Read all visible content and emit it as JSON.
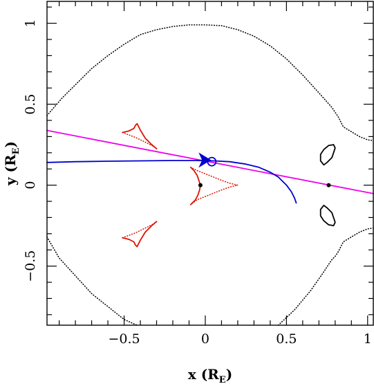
{
  "chart_data": {
    "type": "line",
    "xlabel": {
      "main": "x (R",
      "sub": "E",
      "close": ")"
    },
    "ylabel": {
      "main": "y (R",
      "sub": "E",
      "close": ")"
    },
    "xlim": [
      -0.975,
      1.035
    ],
    "ylim": [
      -0.865,
      1.135
    ],
    "xticks": [
      {
        "value": -0.5,
        "label": "−0.5"
      },
      {
        "value": 0,
        "label": "0"
      },
      {
        "value": 0.5,
        "label": "0.5"
      },
      {
        "value": 1,
        "label": "1"
      }
    ],
    "yticks": [
      {
        "value": -0.5,
        "label": "−0.5"
      },
      {
        "value": 0,
        "label": "0"
      },
      {
        "value": 0.5,
        "label": "0.5"
      },
      {
        "value": 1,
        "label": "1"
      }
    ],
    "x_minor_step": 0.1,
    "y_minor_step": 0.1,
    "series": [
      {
        "style": "dotted",
        "color": "#000000",
        "x": [
          -0.975,
          -0.88,
          -0.8,
          -0.7,
          -0.6,
          -0.5,
          -0.4,
          -0.3,
          -0.2,
          -0.1,
          0.0,
          0.1,
          0.2,
          0.3,
          0.4,
          0.5,
          0.6,
          0.7,
          0.78,
          0.8,
          0.82,
          0.85,
          0.9,
          0.95,
          1.0,
          1.035
        ],
        "y": [
          0.43,
          0.54,
          0.62,
          0.72,
          0.8,
          0.87,
          0.93,
          0.96,
          0.98,
          0.99,
          0.99,
          0.985,
          0.96,
          0.92,
          0.86,
          0.78,
          0.68,
          0.57,
          0.48,
          0.45,
          0.42,
          0.36,
          0.33,
          0.3,
          0.28,
          0.275
        ]
      },
      {
        "style": "dotted",
        "color": "#000000",
        "x": [
          -0.975,
          -0.9,
          -0.8,
          -0.7,
          -0.6,
          -0.5,
          -0.42
        ],
        "y": [
          -0.32,
          -0.45,
          -0.56,
          -0.67,
          -0.75,
          -0.83,
          -0.865
        ]
      },
      {
        "style": "dotted",
        "color": "#000000",
        "x": [
          0.45,
          0.55,
          0.65,
          0.72,
          0.78,
          0.8,
          0.82,
          0.85,
          0.9,
          0.95,
          1.0,
          1.035
        ],
        "y": [
          -0.865,
          -0.77,
          -0.65,
          -0.55,
          -0.46,
          -0.44,
          -0.41,
          -0.35,
          -0.32,
          -0.29,
          -0.27,
          -0.265
        ]
      },
      {
        "style": "solid",
        "color": "#000000",
        "x": [
          0.79,
          0.76,
          0.73,
          0.71,
          0.71,
          0.73,
          0.75,
          0.78,
          0.79,
          0.8,
          0.79
        ],
        "y": [
          0.25,
          0.245,
          0.22,
          0.19,
          0.15,
          0.125,
          0.14,
          0.17,
          0.2,
          0.23,
          0.25
        ]
      },
      {
        "style": "solid",
        "color": "#000000",
        "x": [
          0.79,
          0.76,
          0.73,
          0.71,
          0.71,
          0.73,
          0.75,
          0.78,
          0.79,
          0.8,
          0.79
        ],
        "y": [
          -0.25,
          -0.245,
          -0.22,
          -0.19,
          -0.15,
          -0.125,
          -0.14,
          -0.17,
          -0.2,
          -0.23,
          -0.25
        ]
      },
      {
        "style": "solid",
        "color": "#dd1100",
        "x": [
          -0.51,
          -0.47,
          -0.44,
          -0.43,
          -0.42,
          -0.4,
          -0.37,
          -0.33,
          -0.3
        ],
        "y": [
          0.325,
          0.335,
          0.35,
          0.37,
          0.38,
          0.34,
          0.29,
          0.25,
          0.225
        ]
      },
      {
        "style": "dotted",
        "color": "#dd1100",
        "x": [
          -0.51,
          -0.47,
          -0.43,
          -0.39,
          -0.35,
          -0.32,
          -0.3
        ],
        "y": [
          0.325,
          0.31,
          0.295,
          0.275,
          0.255,
          0.24,
          0.225
        ]
      },
      {
        "style": "solid",
        "color": "#dd1100",
        "x": [
          -0.51,
          -0.47,
          -0.44,
          -0.43,
          -0.42,
          -0.4,
          -0.37,
          -0.33,
          -0.3
        ],
        "y": [
          -0.325,
          -0.335,
          -0.35,
          -0.37,
          -0.38,
          -0.34,
          -0.29,
          -0.25,
          -0.225
        ]
      },
      {
        "style": "dotted",
        "color": "#dd1100",
        "x": [
          -0.51,
          -0.47,
          -0.43,
          -0.39,
          -0.35,
          -0.32,
          -0.3
        ],
        "y": [
          -0.325,
          -0.31,
          -0.295,
          -0.275,
          -0.255,
          -0.24,
          -0.225
        ]
      },
      {
        "style": "solid",
        "color": "#dd1100",
        "x": [
          -0.09,
          -0.07,
          -0.05,
          -0.04,
          -0.03,
          -0.035,
          -0.045,
          -0.06,
          -0.08,
          -0.09
        ],
        "y": [
          0.11,
          0.09,
          0.06,
          0.03,
          0.0,
          -0.03,
          -0.06,
          -0.09,
          -0.11,
          -0.12
        ]
      },
      {
        "style": "dotted",
        "color": "#dd1100",
        "x": [
          -0.09,
          -0.05,
          0.0,
          0.05,
          0.1,
          0.15,
          0.2,
          0.15,
          0.1,
          0.05,
          0.0,
          -0.05,
          -0.09
        ],
        "y": [
          0.11,
          0.09,
          0.07,
          0.05,
          0.03,
          0.012,
          0.0,
          -0.012,
          -0.03,
          -0.05,
          -0.07,
          -0.09,
          -0.12
        ]
      },
      {
        "style": "solid",
        "color": "#ee00ee",
        "x": [
          -0.975,
          1.035
        ],
        "y": [
          0.338,
          -0.052
        ]
      },
      {
        "style": "solid",
        "color": "#0000cc",
        "x": [
          -0.975,
          -0.8,
          -0.6,
          -0.4,
          -0.2,
          -0.05,
          0.05,
          0.15,
          0.25,
          0.33,
          0.4,
          0.45,
          0.5,
          0.53,
          0.55,
          0.56
        ],
        "y": [
          0.14,
          0.145,
          0.148,
          0.15,
          0.152,
          0.152,
          0.15,
          0.145,
          0.13,
          0.11,
          0.08,
          0.05,
          0.0,
          -0.04,
          -0.08,
          -0.11
        ]
      }
    ],
    "markers": [
      {
        "kind": "dot",
        "x": -0.03,
        "y": 0.0
      },
      {
        "kind": "dot",
        "x": 0.76,
        "y": 0.0
      },
      {
        "kind": "circle",
        "x": 0.04,
        "y": 0.145
      },
      {
        "kind": "arrow",
        "x": -0.02,
        "y": 0.155
      }
    ]
  }
}
